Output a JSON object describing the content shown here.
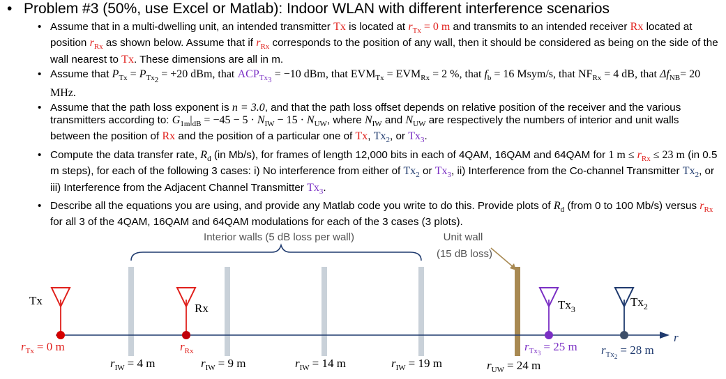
{
  "title": "Problem #3 (50%, use Excel or Matlab): Indoor WLAN with different interference scenarios",
  "bullet_marker": "•",
  "b1": {
    "a": "Assume that in a multi-dwelling unit, an intended transmitter",
    "tx": "Tx",
    "b": "is located at",
    "rtx_eq": "r",
    "rtx_sub": "Tx",
    "rtx_val": "= 0 m",
    "c": "and transmits to an intended receiver",
    "rx": "Rx",
    "d": "located at position",
    "rrx": "r",
    "rrx_sub": "Rx",
    "e": "as shown below.  Assume that if",
    "f": "corresponds to the position of any wall, then it should be considered as being on the side of the wall nearest to",
    "g": "These dimensions are all in m."
  },
  "b2": {
    "a": "Assume that",
    "p1": "P",
    "p1s": "Tx",
    "eq1": "=",
    "p2": "P",
    "p2s": "Tx",
    "p2ss": "2",
    "eq2": "= +20 dBm, that",
    "acp": "ACP",
    "acps": "Tx",
    "acpss": "3",
    "eq3": "= −10 dBm, that",
    "evm1": "EVM",
    "evm1s": "Tx",
    "eq4": "=",
    "evm2": "EVM",
    "evm2s": "Rx",
    "eq5": "= 2 %, that",
    "fb": "f",
    "fbs": "b",
    "eq6": "= 16 Msym/s, that",
    "nf": "NF",
    "nfs": "Rx",
    "eq7": "= 4 dB, that",
    "df": "Δf",
    "dfs": "NB",
    "eq8": "= 20 MHz."
  },
  "b3": {
    "a": "Assume that the path loss exponent is",
    "n": "n = 3.0",
    "b": ", and that the path loss offset depends on relative position of the receiver and the various transmitters according to:",
    "g": "G",
    "gs": "1m",
    "gdb": "|",
    "gdbs": "dB",
    "eq": "= −45 − 5 ·",
    "niw": "N",
    "niws": "IW",
    "eq2": "− 15 ·",
    "nuw": "N",
    "nuws": "UW",
    "c": ", where",
    "d": "and",
    "e": "are respectively the numbers of interior and unit walls between the position of",
    "rx": "Rx",
    "f": "and the position of a particular one of",
    "tx": "Tx",
    "tx2": "Tx",
    "tx2s": "2",
    "or": ", or",
    "tx3": "Tx",
    "tx3s": "3",
    "end": "."
  },
  "b4": {
    "a": "Compute the data transfer rate,",
    "rd": "R",
    "rds": "d",
    "b": "(in Mb/s), for frames of length 12,000 bits in each of 4QAM, 16QAM and 64QAM for",
    "range": "1 m ≤",
    "rrx": "r",
    "rrxs": "Rx",
    "range2": "≤ 23 m",
    "c": "(in 0.5 m steps), for each of the following 3 cases:  i) No interference from either of",
    "d": "or",
    "e": ", ii) Interference from the Co-channel Transmitter",
    "f": ", or iii) Interference from the Adjacent Channel Transmitter",
    "end": "."
  },
  "b5": {
    "a": "Describe all the equations you are using, and provide any Matlab code you write to do this.  Provide plots of",
    "b": "(from 0 to 100 Mb/s) versus",
    "c": "for all 3 of the 4QAM, 16QAM and 64QAM modulations for each of the 3 cases (3 plots)."
  },
  "diagram": {
    "interior_walls_label": "Interior walls (5 dB loss per wall)",
    "unit_wall_label_1": "Unit wall",
    "unit_wall_label_2": "(15 dB loss)",
    "tx_label": "Tx",
    "rx_label": "Rx",
    "tx3_label": "Tx",
    "tx3_sub": "3",
    "tx2_label": "Tx",
    "tx2_sub": "2",
    "axis_label": "r",
    "rtx_r": "r",
    "rtx_sub": "Tx",
    "rtx_val": "= 0 m",
    "rrx_r": "r",
    "rrx_sub": "Rx",
    "w1_r": "r",
    "w1_sub": "IW",
    "w1_val": "= 4 m",
    "w2_r": "r",
    "w2_sub": "IW",
    "w2_val": "= 9 m",
    "w3_r": "r",
    "w3_sub": "IW",
    "w3_val": "= 14 m",
    "w4_r": "r",
    "w4_sub": "IW",
    "w4_val": "= 19 m",
    "uw_r": "r",
    "uw_sub": "UW",
    "uw_val": "= 24 m",
    "tx3pos_r": "r",
    "tx3pos_sub": "Tx",
    "tx3pos_subsub": "3",
    "tx3pos_val": "= 25 m",
    "tx2pos_r": "r",
    "tx2pos_sub": "Tx",
    "tx2pos_subsub": "2",
    "tx2pos_val": "= 28 m",
    "colors": {
      "tx": "#e0201c",
      "rx": "#c0000a",
      "tx3": "#7a2fc4",
      "tx2": "#1f3a6e",
      "interior_wall": "#c9d1d9",
      "unit_wall": "#a88952",
      "axis": "#1f3a6e"
    }
  }
}
